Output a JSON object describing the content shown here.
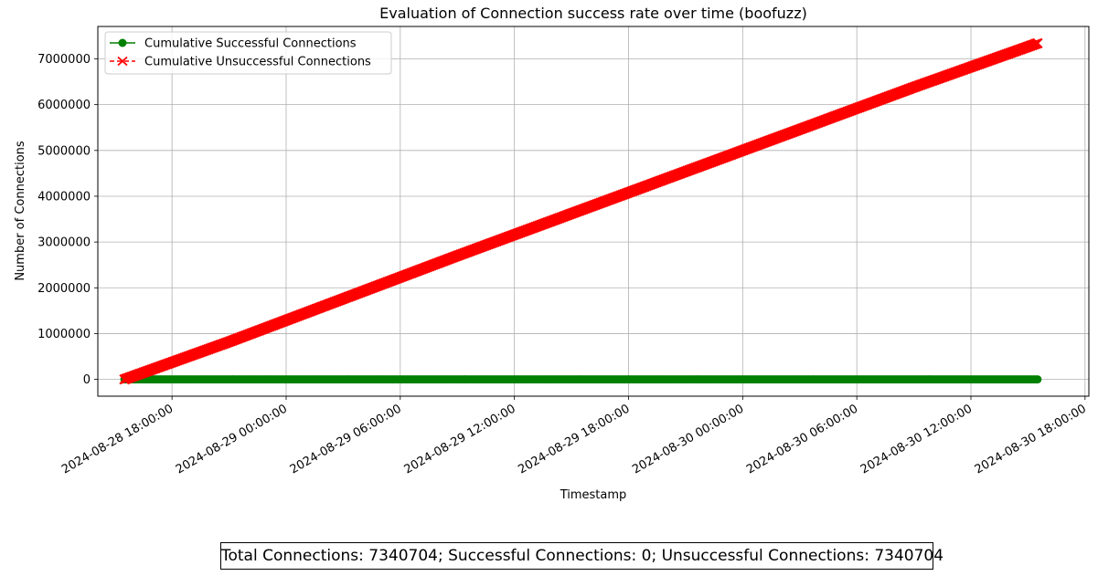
{
  "chart_data": {
    "type": "line",
    "title": "Evaluation of Connection success rate over time (boofuzz)",
    "xlabel": "Timestamp",
    "ylabel": "Number of Connections",
    "x_type": "datetime",
    "xlim": [
      "2024-08-28 14:06:00",
      "2024-08-30 18:12:00"
    ],
    "ylim": [
      -367035,
      7707739
    ],
    "x_ticks": [
      "2024-08-28 18:00:00",
      "2024-08-29 00:00:00",
      "2024-08-29 06:00:00",
      "2024-08-29 12:00:00",
      "2024-08-29 18:00:00",
      "2024-08-30 00:00:00",
      "2024-08-30 06:00:00",
      "2024-08-30 12:00:00",
      "2024-08-30 18:00:00"
    ],
    "y_ticks": [
      0,
      1000000,
      2000000,
      3000000,
      4000000,
      5000000,
      6000000,
      7000000
    ],
    "grid": true,
    "legend_position": "top-left",
    "series": [
      {
        "name": "Cumulative Successful Connections",
        "color": "#008000",
        "line_style": "solid",
        "marker": "circle",
        "x": [
          "2024-08-28 15:30:00",
          "2024-08-29 03:00:00",
          "2024-08-29 15:00:00",
          "2024-08-30 03:00:00",
          "2024-08-30 15:30:00"
        ],
        "y": [
          0,
          0,
          0,
          0,
          0
        ]
      },
      {
        "name": "Cumulative Unsuccessful Connections",
        "color": "#ff0000",
        "line_style": "dashed",
        "marker": "x",
        "x": [
          "2024-08-28 15:30:00",
          "2024-08-28 21:00:00",
          "2024-08-29 03:00:00",
          "2024-08-29 09:00:00",
          "2024-08-29 15:00:00",
          "2024-08-29 21:00:00",
          "2024-08-30 03:00:00",
          "2024-08-30 09:00:00",
          "2024-08-30 15:30:00"
        ],
        "y": [
          0,
          820000,
          1760000,
          2700000,
          3620000,
          4540000,
          5460000,
          6380000,
          7340704
        ]
      }
    ]
  },
  "summary": {
    "text": "Total Connections: 7340704; Successful Connections: 0; Unsuccessful Connections: 7340704"
  }
}
